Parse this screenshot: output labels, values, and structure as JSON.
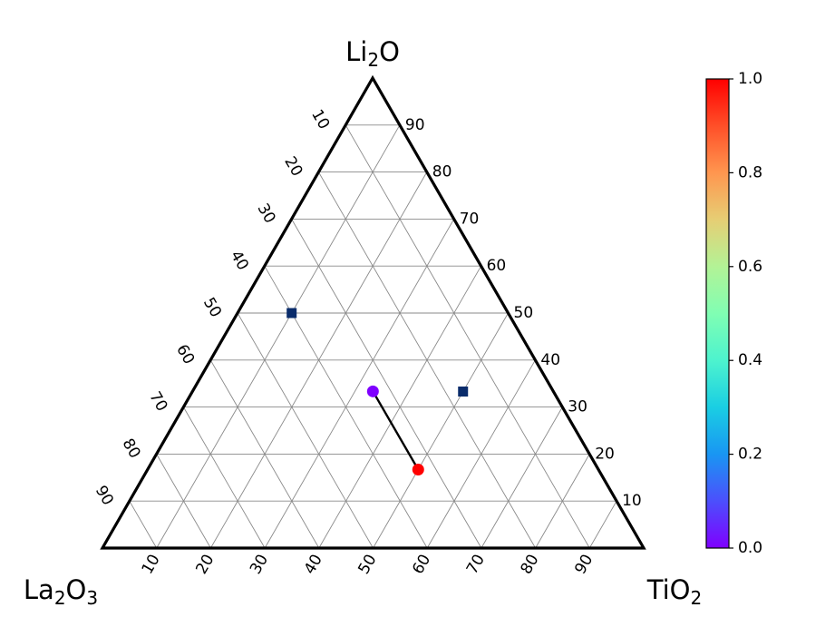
{
  "chart_data": {
    "type": "scatter",
    "subtype": "ternary",
    "corners": {
      "top": {
        "base": "Li",
        "sub": "2",
        "rest": "O"
      },
      "left": {
        "base": "La",
        "sub": "2",
        "rest": "O",
        "sub2": "3"
      },
      "right": {
        "base": "TiO",
        "sub": "2",
        "rest": ""
      }
    },
    "left_ticks": [
      "10",
      "20",
      "30",
      "40",
      "50",
      "60",
      "70",
      "80",
      "90"
    ],
    "right_ticks": [
      "10",
      "20",
      "30",
      "40",
      "50",
      "60",
      "70",
      "80",
      "90"
    ],
    "bottom_ticks": [
      "10",
      "20",
      "30",
      "40",
      "50",
      "60",
      "70",
      "80",
      "90"
    ],
    "grid": true,
    "points": [
      {
        "marker": "square",
        "Li2O": 50,
        "La2O3": 40,
        "TiO2": 10,
        "value": 0.14,
        "color": "#0a2c6b"
      },
      {
        "marker": "square",
        "Li2O": 33.3,
        "La2O3": 16.7,
        "TiO2": 50,
        "value": 0.14,
        "color": "#0a2c6b"
      },
      {
        "marker": "circle",
        "Li2O": 33.3,
        "La2O3": 33.3,
        "TiO2": 33.3,
        "value": 0.0,
        "color": "#7f00ff"
      },
      {
        "marker": "circle",
        "Li2O": 16.7,
        "La2O3": 33.3,
        "TiO2": 50,
        "value": 1.0,
        "color": "#ff0000"
      }
    ],
    "tie_lines": [
      {
        "from": 2,
        "to": 3
      }
    ],
    "colorbar": {
      "colormap": "rainbow",
      "range": [
        0.0,
        1.0
      ],
      "ticks": [
        "0.0",
        "0.2",
        "0.4",
        "0.6",
        "0.8",
        "1.0"
      ]
    }
  }
}
